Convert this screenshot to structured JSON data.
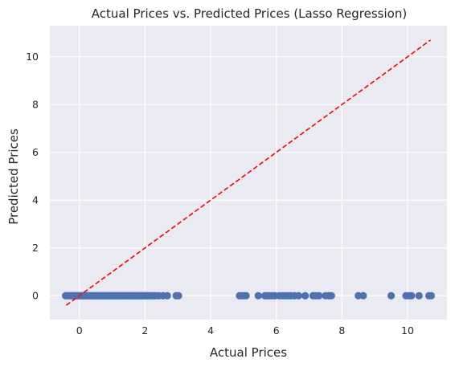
{
  "chart_data": {
    "type": "scatter",
    "title": "Actual Prices vs. Predicted Prices (Lasso Regression)",
    "xlabel": "Actual Prices",
    "ylabel": "Predicted Prices",
    "xlim": [
      -0.9,
      11.2
    ],
    "ylim": [
      -1.0,
      11.3
    ],
    "xticks": [
      0,
      2,
      4,
      6,
      8,
      10
    ],
    "yticks": [
      0,
      2,
      4,
      6,
      8,
      10
    ],
    "grid": true,
    "background": "#eaeaf2",
    "grid_color": "#ffffff",
    "point_color": "#4c72b0",
    "reference_line": {
      "color": "#ff0000",
      "style": "dashed",
      "from": [
        -0.4,
        -0.4
      ],
      "to": [
        10.7,
        10.7
      ]
    },
    "series": [
      {
        "x": [
          -0.42,
          -0.38,
          -0.33,
          -0.28,
          -0.24,
          -0.19,
          -0.15,
          -0.1,
          -0.06,
          -0.01,
          0.03,
          0.08,
          0.12,
          0.17,
          0.21,
          0.26,
          0.3,
          0.35,
          0.39,
          0.44,
          0.48,
          0.53,
          0.57,
          0.62,
          0.66,
          0.71,
          0.75,
          0.8,
          0.84,
          0.89,
          0.93,
          0.98,
          1.02,
          1.07,
          1.11,
          1.16,
          1.2,
          1.25,
          1.29,
          1.34,
          1.38,
          1.43,
          1.47,
          1.52,
          1.56,
          1.61,
          1.65,
          1.7,
          1.74,
          1.79,
          1.83,
          1.88,
          1.92,
          1.97,
          2.01,
          2.06,
          2.1,
          2.15,
          2.2,
          2.27,
          2.33,
          2.42,
          2.55,
          2.68,
          2.95,
          3.02,
          4.88,
          4.95,
          5.02,
          5.08,
          5.45,
          5.65,
          5.72,
          5.8,
          5.88,
          5.96,
          6.1,
          6.2,
          6.28,
          6.36,
          6.44,
          6.55,
          6.68,
          6.88,
          7.12,
          7.2,
          7.3,
          7.5,
          7.6,
          7.68,
          8.5,
          8.65,
          9.5,
          9.95,
          10.05,
          10.12,
          10.35,
          10.65,
          10.72
        ],
        "y": [
          0,
          0,
          0,
          0,
          0,
          0,
          0,
          0,
          0,
          0,
          0,
          0,
          0,
          0,
          0,
          0,
          0,
          0,
          0,
          0,
          0,
          0,
          0,
          0,
          0,
          0,
          0,
          0,
          0,
          0,
          0,
          0,
          0,
          0,
          0,
          0,
          0,
          0,
          0,
          0,
          0,
          0,
          0,
          0,
          0,
          0,
          0,
          0,
          0,
          0,
          0,
          0,
          0,
          0,
          0,
          0,
          0,
          0,
          0,
          0,
          0,
          0,
          0,
          0,
          0,
          0,
          0,
          0,
          0,
          0,
          0,
          0,
          0,
          0,
          0,
          0,
          0,
          0,
          0,
          0,
          0,
          0,
          0,
          0,
          0,
          0,
          0,
          0,
          0,
          0,
          0,
          0,
          0,
          0,
          0,
          0,
          0,
          0,
          0
        ]
      }
    ]
  }
}
